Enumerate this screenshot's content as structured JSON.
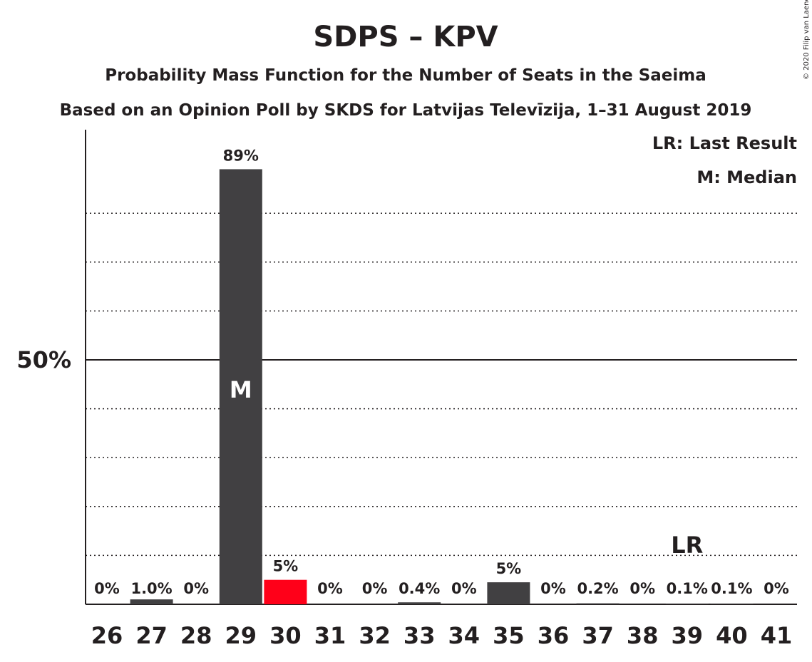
{
  "chart_data": {
    "type": "bar",
    "title": "SDPS – KPV",
    "subtitle": "Probability Mass Function for the Number of Seats in the Saeima",
    "subtitle2": "Based on an Opinion Poll by SKDS for Latvijas Televīzija, 1–31 August 2019",
    "copyright": "© 2020 Filip van Laenen",
    "legend": [
      "LR: Last Result",
      "M: Median"
    ],
    "ytick_label": "50%",
    "ylim": [
      0,
      1
    ],
    "categories": [
      "26",
      "27",
      "28",
      "29",
      "30",
      "31",
      "32",
      "33",
      "34",
      "35",
      "36",
      "37",
      "38",
      "39",
      "40",
      "41"
    ],
    "values": [
      0,
      0.01,
      0,
      0.89,
      0.05,
      0,
      0,
      0.004,
      0,
      0.045,
      0,
      0.002,
      0,
      0.001,
      0.001,
      0
    ],
    "labels": [
      "0%",
      "1.0%",
      "0%",
      "89%",
      "5%",
      "0%",
      "0%",
      "0.4%",
      "0%",
      "5%",
      "0%",
      "0.2%",
      "0%",
      "0.1%",
      "0.1%",
      "0%"
    ],
    "median_seat": "29",
    "median_marker": "M",
    "last_result_seat": "39",
    "last_result_marker": "LR",
    "colors": {
      "bar": "#414042",
      "highlight": "#ff0019",
      "text": "#231f20",
      "grid": "#231f20"
    },
    "highlight_seat": "30"
  }
}
